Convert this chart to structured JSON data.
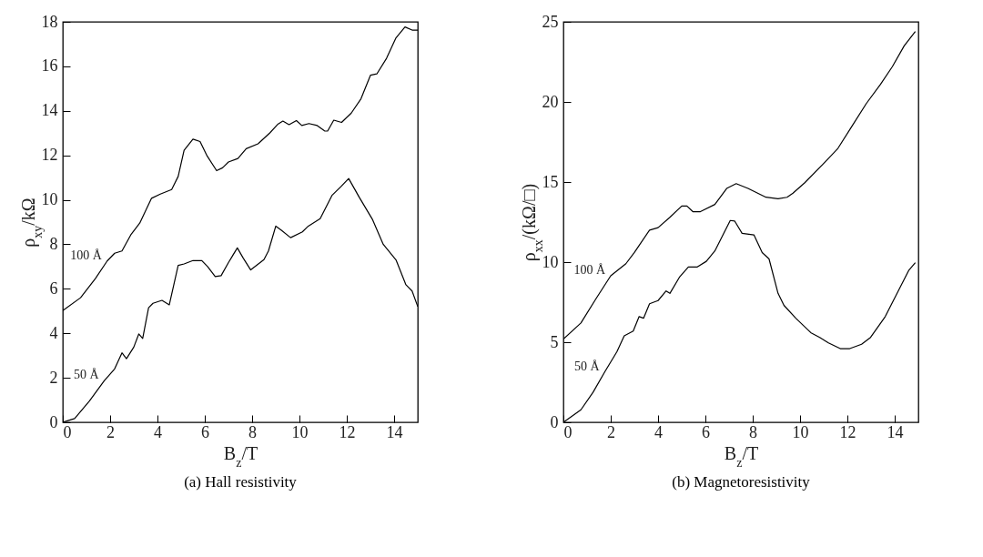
{
  "chart_data": [
    {
      "type": "line",
      "title": "(a)  Hall resistivity",
      "xlabel": "B$_{z}$/T",
      "ylabel": "ρ$_{xy}$/kΩ",
      "xlim": [
        0,
        15
      ],
      "xticks": [
        0,
        2,
        4,
        6,
        8,
        10,
        12,
        14
      ],
      "ylim": [
        0,
        18
      ],
      "yticks": [
        0,
        2,
        4,
        6,
        8,
        10,
        12,
        14,
        16,
        18
      ],
      "series": [
        {
          "name": "100 Å",
          "color": "#000000",
          "x": [
            0,
            0.75,
            1.375,
            1.875,
            2.19,
            2.5,
            2.875,
            3.25,
            3.75,
            4.12,
            4.6,
            4.875,
            5.125,
            5.5,
            5.8,
            6.1,
            6.5,
            6.75,
            7.0,
            7.4,
            7.75,
            8.25,
            8.75,
            9.1,
            9.3,
            9.56,
            9.87,
            10.1,
            10.4,
            10.75,
            11.06,
            11.19,
            11.45,
            11.78,
            12.19,
            12.6,
            13.0,
            13.27,
            13.68,
            14.08,
            14.46,
            14.76,
            15.0
          ],
          "values": [
            5.02,
            5.6,
            6.46,
            7.25,
            7.6,
            7.7,
            8.43,
            8.95,
            10.07,
            10.26,
            10.46,
            11.05,
            12.23,
            12.73,
            12.62,
            11.97,
            11.31,
            11.44,
            11.7,
            11.86,
            12.3,
            12.52,
            13.01,
            13.41,
            13.54,
            13.38,
            13.56,
            13.34,
            13.43,
            13.34,
            13.1,
            13.09,
            13.58,
            13.48,
            13.9,
            14.54,
            15.6,
            15.66,
            16.36,
            17.28,
            17.77,
            17.63,
            17.63
          ]
        },
        {
          "name": "50 Å",
          "color": "#000000",
          "x": [
            0,
            0.5,
            1.125,
            1.75,
            2.19,
            2.5,
            2.69,
            3.0,
            3.21,
            3.375,
            3.625,
            3.81,
            4.19,
            4.5,
            4.875,
            5.125,
            5.5,
            5.875,
            6.125,
            6.44,
            6.69,
            7.0,
            7.375,
            7.625,
            7.94,
            8.5,
            8.69,
            9.0,
            9.25,
            9.625,
            10.125,
            10.375,
            10.875,
            11.375,
            11.75,
            12.08,
            12.53,
            13.08,
            13.54,
            14.08,
            14.5,
            14.76,
            15.0
          ],
          "values": [
            0,
            0.17,
            0.96,
            1.87,
            2.4,
            3.12,
            2.86,
            3.38,
            3.97,
            3.77,
            5.15,
            5.35,
            5.48,
            5.28,
            7.05,
            7.12,
            7.27,
            7.27,
            6.99,
            6.55,
            6.59,
            7.18,
            7.84,
            7.38,
            6.85,
            7.31,
            7.7,
            8.82,
            8.62,
            8.3,
            8.56,
            8.82,
            9.15,
            10.2,
            10.59,
            10.96,
            10.11,
            9.13,
            8.0,
            7.3,
            6.18,
            5.9,
            5.2
          ]
        }
      ]
    },
    {
      "type": "line",
      "title": "(b)  Magnetoresistivity",
      "xlabel": "B$_{z}$/T",
      "ylabel": "ρ$_{xx}$/(kΩ/□)",
      "xlim": [
        0,
        15
      ],
      "xticks": [
        0,
        2,
        4,
        6,
        8,
        10,
        12,
        14
      ],
      "ylim": [
        0,
        25
      ],
      "yticks": [
        0,
        5,
        10,
        15,
        20,
        25
      ],
      "series": [
        {
          "name": "100 Å",
          "color": "#000000",
          "x": [
            0,
            0.74,
            1.37,
            2.0,
            2.64,
            3.0,
            3.64,
            4.0,
            4.5,
            5.0,
            5.22,
            5.47,
            5.79,
            6.4,
            6.9,
            7.3,
            7.8,
            8.56,
            9.07,
            9.45,
            9.7,
            10.2,
            10.96,
            11.6,
            12.2,
            12.8,
            13.4,
            13.9,
            14.4,
            14.87
          ],
          "values": [
            5.2,
            6.2,
            7.7,
            9.15,
            9.9,
            10.6,
            12.0,
            12.15,
            12.8,
            13.5,
            13.5,
            13.15,
            13.15,
            13.6,
            14.6,
            14.9,
            14.6,
            14.05,
            13.96,
            14.05,
            14.3,
            14.96,
            16.1,
            17.1,
            18.5,
            19.9,
            21.1,
            22.2,
            23.5,
            24.4
          ]
        },
        {
          "name": "50 Å",
          "color": "#000000",
          "x": [
            0,
            0.74,
            1.25,
            1.75,
            2.26,
            2.57,
            2.95,
            3.2,
            3.39,
            3.64,
            4.0,
            4.34,
            4.5,
            4.9,
            5.28,
            5.66,
            6.04,
            6.4,
            7.05,
            7.24,
            7.55,
            8.05,
            8.4,
            8.69,
            9.07,
            9.32,
            9.82,
            10.45,
            10.83,
            11.2,
            11.7,
            12.1,
            12.6,
            12.98,
            13.6,
            14.1,
            14.6,
            14.87
          ],
          "values": [
            0,
            0.78,
            1.87,
            3.15,
            4.4,
            5.4,
            5.7,
            6.6,
            6.5,
            7.4,
            7.6,
            8.2,
            8.05,
            9.05,
            9.7,
            9.7,
            10.05,
            10.7,
            12.6,
            12.56,
            11.8,
            11.7,
            10.6,
            10.2,
            8.05,
            7.3,
            6.5,
            5.6,
            5.3,
            4.96,
            4.6,
            4.6,
            4.87,
            5.3,
            6.6,
            8.05,
            9.5,
            9.96
          ]
        }
      ]
    }
  ]
}
